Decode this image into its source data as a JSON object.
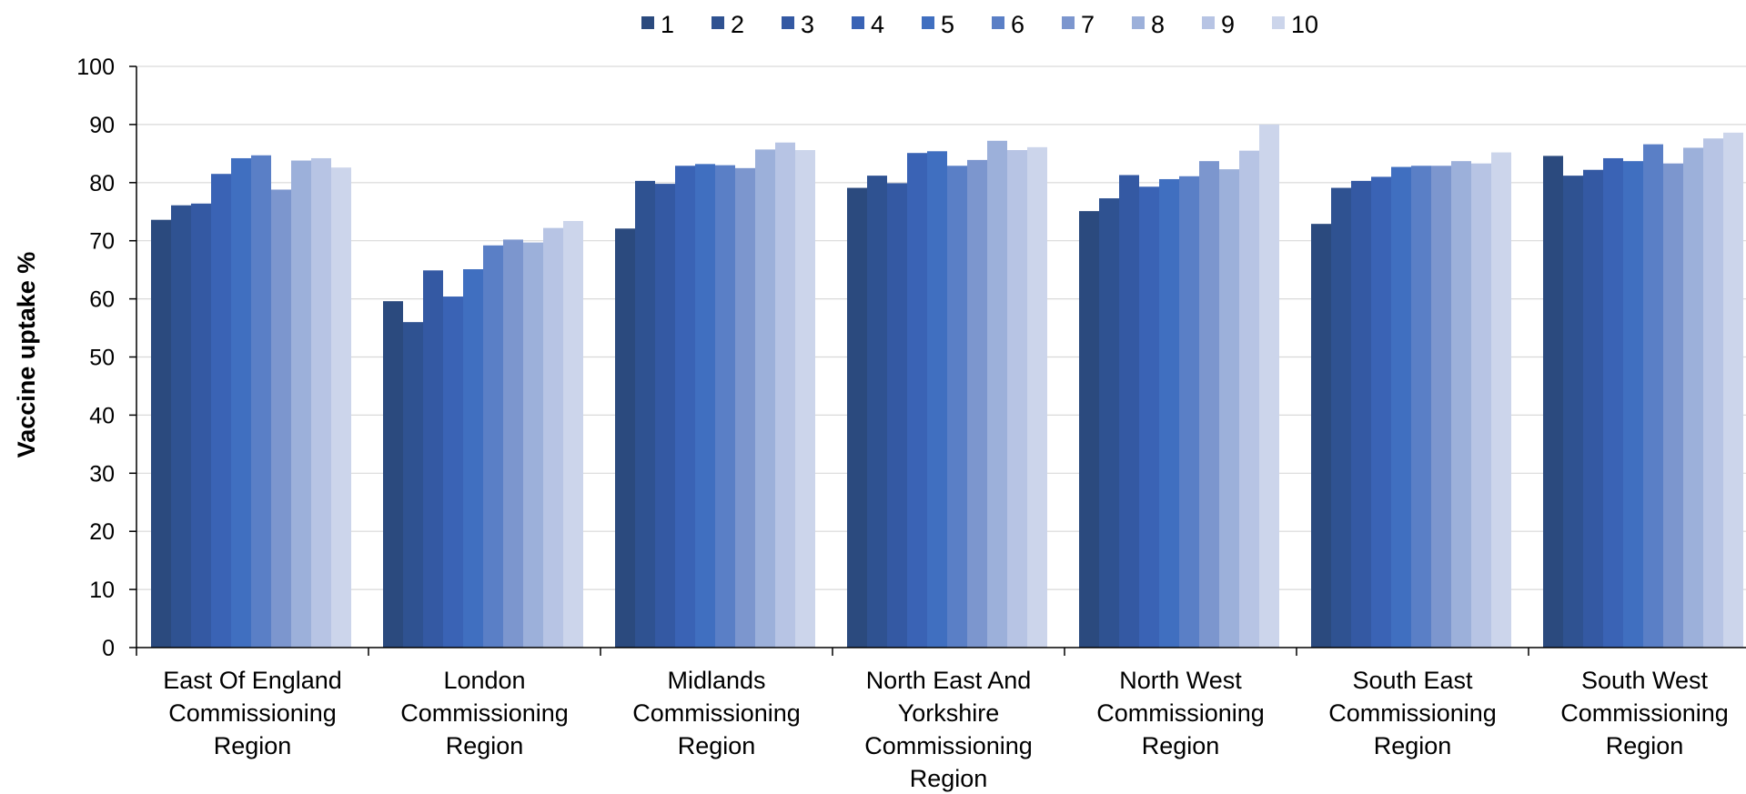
{
  "chart_data": {
    "type": "bar",
    "title": "",
    "xlabel": "",
    "ylabel": "Vaccine uptake %",
    "ylim": [
      0,
      100
    ],
    "yticks": [
      0,
      10,
      20,
      30,
      40,
      50,
      60,
      70,
      80,
      90,
      100
    ],
    "grid": true,
    "legend_position": "top",
    "categories": [
      [
        "East Of England",
        "Commissioning",
        "Region"
      ],
      [
        "London",
        "Commissioning",
        "Region"
      ],
      [
        "Midlands",
        "Commissioning",
        "Region"
      ],
      [
        "North East And",
        "Yorkshire",
        "Commissioning",
        "Region"
      ],
      [
        "North West",
        "Commissioning",
        "Region"
      ],
      [
        "South East",
        "Commissioning",
        "Region"
      ],
      [
        "South West",
        "Commissioning",
        "Region"
      ]
    ],
    "series": [
      {
        "name": "1",
        "color": "#2b4a7e",
        "values": [
          73.6,
          59.6,
          72.1,
          79.1,
          75.1,
          72.9,
          84.6
        ]
      },
      {
        "name": "2",
        "color": "#2f5291",
        "values": [
          76.1,
          56.0,
          80.3,
          81.2,
          77.3,
          79.1,
          81.2
        ]
      },
      {
        "name": "3",
        "color": "#3459a3",
        "values": [
          76.4,
          64.9,
          79.8,
          79.9,
          81.3,
          80.3,
          82.2
        ]
      },
      {
        "name": "4",
        "color": "#3a63b5",
        "values": [
          81.5,
          60.4,
          82.9,
          85.1,
          79.3,
          81.0,
          84.2
        ]
      },
      {
        "name": "5",
        "color": "#406fc0",
        "values": [
          84.2,
          65.1,
          83.2,
          85.4,
          80.6,
          82.7,
          83.7
        ]
      },
      {
        "name": "6",
        "color": "#5a7fc6",
        "values": [
          84.7,
          69.2,
          83.0,
          82.9,
          81.1,
          82.9,
          86.6
        ]
      },
      {
        "name": "7",
        "color": "#7c96ce",
        "values": [
          78.8,
          70.2,
          82.5,
          83.9,
          83.7,
          82.9,
          83.3
        ]
      },
      {
        "name": "8",
        "color": "#9cb0da",
        "values": [
          83.8,
          69.7,
          85.7,
          87.2,
          82.3,
          83.7,
          86.0
        ]
      },
      {
        "name": "9",
        "color": "#b7c4e4",
        "values": [
          84.2,
          72.2,
          86.9,
          85.6,
          85.5,
          83.3,
          87.6
        ]
      },
      {
        "name": "10",
        "color": "#ccd5eb",
        "values": [
          82.6,
          73.4,
          85.6,
          86.1,
          90.0,
          85.2,
          88.6
        ]
      }
    ]
  }
}
